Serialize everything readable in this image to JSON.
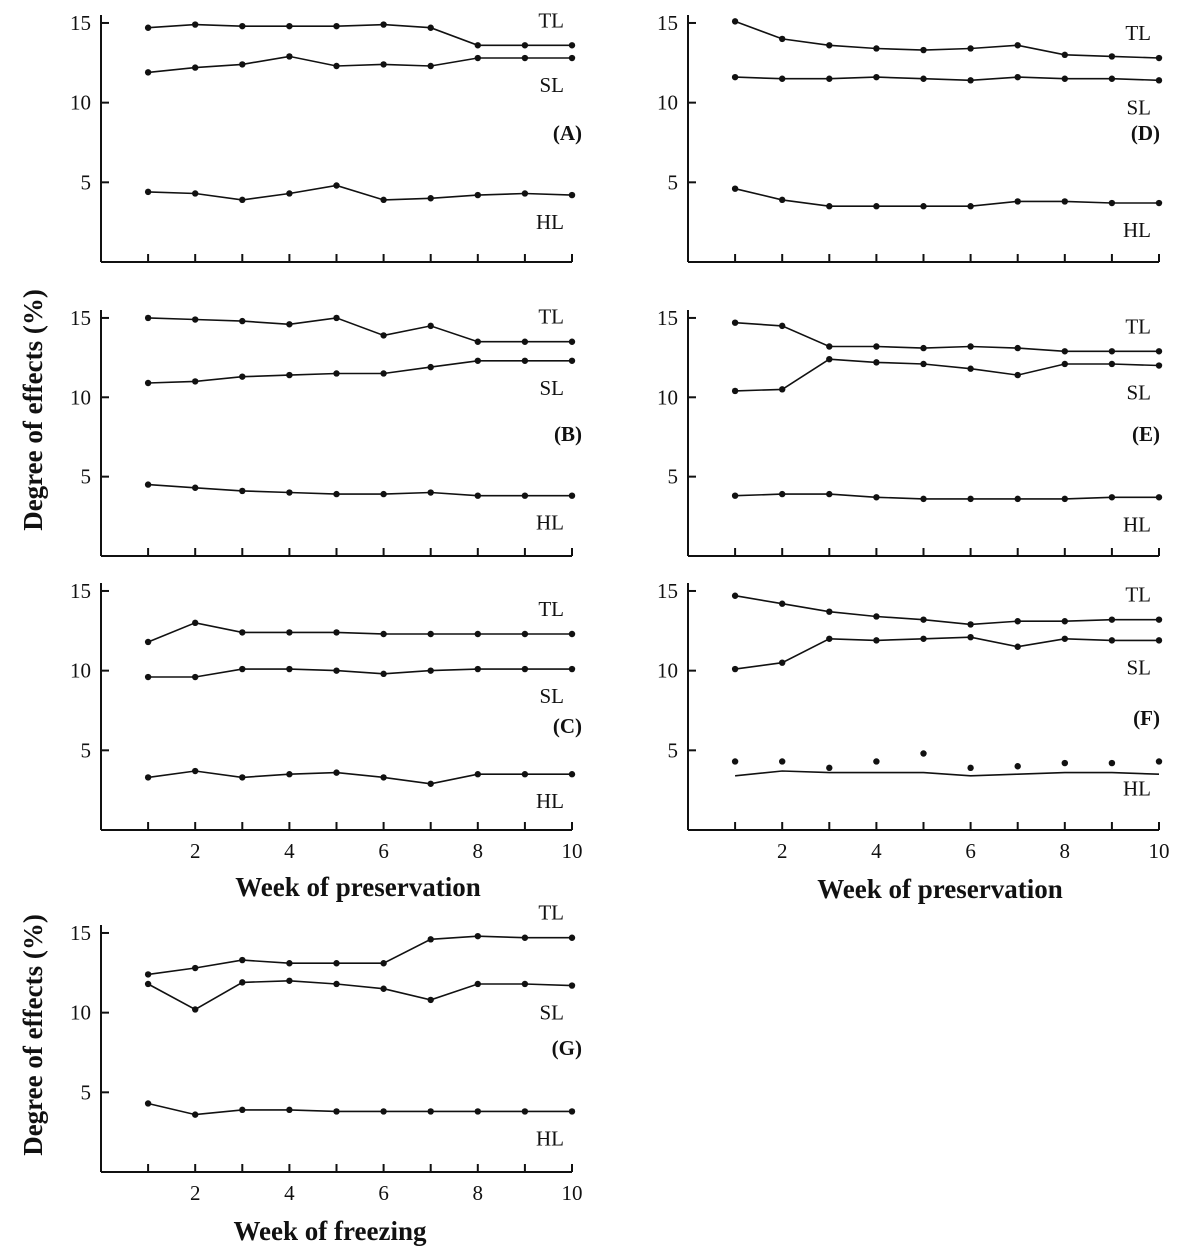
{
  "figure": {
    "ylabel": "Degree of effects (%)",
    "ylabel_bottom": "Degree of effects (%)",
    "xlabel_left": "Week of preservation",
    "xlabel_right": "Week of preservation",
    "xlabel_bottom": "Week of freezing"
  },
  "chart_data": [
    {
      "panel": "(A)",
      "type": "line",
      "x": [
        1,
        2,
        3,
        4,
        5,
        6,
        7,
        8,
        9,
        10
      ],
      "xticks": [
        "2",
        "4",
        "6",
        "8",
        "10"
      ],
      "yticks": [
        "5",
        "10",
        "15"
      ],
      "xlim": [
        0,
        10
      ],
      "ylim": [
        0,
        15.5
      ],
      "show_xticklabels": false,
      "series": [
        {
          "name": "TL",
          "values": [
            14.7,
            14.9,
            14.8,
            14.8,
            14.8,
            14.9,
            14.7,
            13.6,
            13.6,
            13.6
          ],
          "markers": true,
          "line": true
        },
        {
          "name": "SL",
          "values": [
            11.9,
            12.2,
            12.4,
            12.9,
            12.3,
            12.4,
            12.3,
            12.8,
            12.8,
            12.8
          ],
          "markers": true,
          "line": true
        },
        {
          "name": "HL",
          "values": [
            4.4,
            4.3,
            3.9,
            4.3,
            4.8,
            3.9,
            4.0,
            4.2,
            4.3,
            4.2
          ],
          "markers": true,
          "line": true
        }
      ]
    },
    {
      "panel": "(D)",
      "type": "line",
      "x": [
        1,
        2,
        3,
        4,
        5,
        6,
        7,
        8,
        9,
        10
      ],
      "xticks": [
        "2",
        "4",
        "6",
        "8",
        "10"
      ],
      "yticks": [
        "5",
        "10",
        "15"
      ],
      "xlim": [
        0,
        10
      ],
      "ylim": [
        0,
        15.5
      ],
      "show_xticklabels": false,
      "series": [
        {
          "name": "TL",
          "values": [
            15.1,
            14.0,
            13.6,
            13.4,
            13.3,
            13.4,
            13.6,
            13.0,
            12.9,
            12.8
          ],
          "markers": true,
          "line": true
        },
        {
          "name": "SL",
          "values": [
            11.6,
            11.5,
            11.5,
            11.6,
            11.5,
            11.4,
            11.6,
            11.5,
            11.5,
            11.4
          ],
          "markers": true,
          "line": true
        },
        {
          "name": "HL",
          "values": [
            4.6,
            3.9,
            3.5,
            3.5,
            3.5,
            3.5,
            3.8,
            3.8,
            3.7,
            3.7
          ],
          "markers": true,
          "line": true
        }
      ]
    },
    {
      "panel": "(B)",
      "type": "line",
      "x": [
        1,
        2,
        3,
        4,
        5,
        6,
        7,
        8,
        9,
        10
      ],
      "xticks": [
        "2",
        "4",
        "6",
        "8",
        "10"
      ],
      "yticks": [
        "5",
        "10",
        "15"
      ],
      "xlim": [
        0,
        10
      ],
      "ylim": [
        0,
        15.5
      ],
      "show_xticklabels": false,
      "series": [
        {
          "name": "TL",
          "values": [
            15.0,
            14.9,
            14.8,
            14.6,
            15.0,
            13.9,
            14.5,
            13.5,
            13.5,
            13.5
          ],
          "markers": true,
          "line": true
        },
        {
          "name": "SL",
          "values": [
            10.9,
            11.0,
            11.3,
            11.4,
            11.5,
            11.5,
            11.9,
            12.3,
            12.3,
            12.3
          ],
          "markers": true,
          "line": true
        },
        {
          "name": "HL",
          "values": [
            4.5,
            4.3,
            4.1,
            4.0,
            3.9,
            3.9,
            4.0,
            3.8,
            3.8,
            3.8
          ],
          "markers": true,
          "line": true
        }
      ]
    },
    {
      "panel": "(E)",
      "type": "line",
      "x": [
        1,
        2,
        3,
        4,
        5,
        6,
        7,
        8,
        9,
        10
      ],
      "xticks": [
        "2",
        "4",
        "6",
        "8",
        "10"
      ],
      "yticks": [
        "5",
        "10",
        "15"
      ],
      "xlim": [
        0,
        10
      ],
      "ylim": [
        0,
        15.5
      ],
      "show_xticklabels": false,
      "series": [
        {
          "name": "TL",
          "values": [
            14.7,
            14.5,
            13.2,
            13.2,
            13.1,
            13.2,
            13.1,
            12.9,
            12.9,
            12.9
          ],
          "markers": true,
          "line": true
        },
        {
          "name": "SL",
          "values": [
            10.4,
            10.5,
            12.4,
            12.2,
            12.1,
            11.8,
            11.4,
            12.1,
            12.1,
            12.0
          ],
          "markers": true,
          "line": true
        },
        {
          "name": "HL",
          "values": [
            3.8,
            3.9,
            3.9,
            3.7,
            3.6,
            3.6,
            3.6,
            3.6,
            3.7,
            3.7
          ],
          "markers": true,
          "line": true
        }
      ]
    },
    {
      "panel": "(C)",
      "type": "line",
      "x": [
        1,
        2,
        3,
        4,
        5,
        6,
        7,
        8,
        9,
        10
      ],
      "xticks": [
        "2",
        "4",
        "6",
        "8",
        "10"
      ],
      "yticks": [
        "5",
        "10",
        "15"
      ],
      "xlim": [
        0,
        10
      ],
      "ylim": [
        0,
        15.5
      ],
      "show_xticklabels": true,
      "series": [
        {
          "name": "TL",
          "values": [
            11.8,
            13.0,
            12.4,
            12.4,
            12.4,
            12.3,
            12.3,
            12.3,
            12.3,
            12.3
          ],
          "markers": true,
          "line": true
        },
        {
          "name": "SL",
          "values": [
            9.6,
            9.6,
            10.1,
            10.1,
            10.0,
            9.8,
            10.0,
            10.1,
            10.1,
            10.1
          ],
          "markers": true,
          "line": true
        },
        {
          "name": "HL",
          "values": [
            3.3,
            3.7,
            3.3,
            3.5,
            3.6,
            3.3,
            2.9,
            3.5,
            3.5,
            3.5
          ],
          "markers": true,
          "line": true
        }
      ]
    },
    {
      "panel": "(F)",
      "type": "line",
      "x": [
        1,
        2,
        3,
        4,
        5,
        6,
        7,
        8,
        9,
        10
      ],
      "xticks": [
        "2",
        "4",
        "6",
        "8",
        "10"
      ],
      "yticks": [
        "5",
        "10",
        "15"
      ],
      "xlim": [
        0,
        10
      ],
      "ylim": [
        0,
        15.5
      ],
      "show_xticklabels": true,
      "series": [
        {
          "name": "TL",
          "values": [
            14.7,
            14.2,
            13.7,
            13.4,
            13.2,
            12.9,
            13.1,
            13.1,
            13.2,
            13.2
          ],
          "markers": true,
          "line": true
        },
        {
          "name": "SL",
          "values": [
            10.1,
            10.5,
            12.0,
            11.9,
            12.0,
            12.1,
            11.5,
            12.0,
            11.9,
            11.9
          ],
          "markers": true,
          "line": true
        },
        {
          "name": "HL",
          "values": [
            4.3,
            4.3,
            3.9,
            4.3,
            4.8,
            3.9,
            4.0,
            4.2,
            4.2,
            4.3
          ],
          "markers": true,
          "line": false
        },
        {
          "name": "",
          "values": [
            3.4,
            3.7,
            3.6,
            3.6,
            3.6,
            3.4,
            3.5,
            3.6,
            3.6,
            3.5
          ],
          "markers": false,
          "line": true
        }
      ]
    },
    {
      "panel": "(G)",
      "type": "line",
      "x": [
        1,
        2,
        3,
        4,
        5,
        6,
        7,
        8,
        9,
        10
      ],
      "xticks": [
        "2",
        "4",
        "6",
        "8",
        "10"
      ],
      "yticks": [
        "5",
        "10",
        "15"
      ],
      "xlim": [
        0,
        10
      ],
      "ylim": [
        0,
        15.5
      ],
      "show_xticklabels": true,
      "series": [
        {
          "name": "TL",
          "values": [
            12.4,
            12.8,
            13.3,
            13.1,
            13.1,
            13.1,
            14.6,
            14.8,
            14.7,
            14.7
          ],
          "markers": true,
          "line": true
        },
        {
          "name": "SL",
          "values": [
            11.8,
            10.2,
            11.9,
            12.0,
            11.8,
            11.5,
            10.8,
            11.8,
            11.8,
            11.7
          ],
          "markers": true,
          "line": true
        },
        {
          "name": "HL",
          "values": [
            4.3,
            3.6,
            3.9,
            3.9,
            3.8,
            3.8,
            3.8,
            3.8,
            3.8,
            3.8
          ],
          "markers": true,
          "line": true
        }
      ]
    }
  ]
}
